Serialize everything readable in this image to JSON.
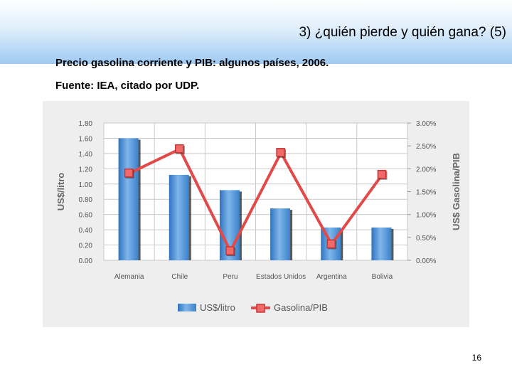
{
  "slide": {
    "title": "3) ¿quién pierde y quién gana? (5)",
    "subtitle_1": "Precio gasolina corriente y PIB: algunos países, 2006.",
    "subtitle_2": "Fuente: IEA, citado por UDP.",
    "page_number": "16"
  },
  "chart_data": {
    "type": "bar",
    "title": "",
    "categories": [
      "Alemania",
      "Chile",
      "Peru",
      "Estados Unidos",
      "Argentina",
      "Bolivia"
    ],
    "series": [
      {
        "name": "US$/litro",
        "type": "bar",
        "axis": "left",
        "color": "#4a8fd4",
        "values": [
          1.6,
          1.12,
          0.92,
          0.68,
          0.43,
          0.43
        ]
      },
      {
        "name": "Gasolina/PIB",
        "type": "line",
        "axis": "right",
        "color": "#e24a4a",
        "values": [
          1.9,
          2.43,
          0.2,
          2.35,
          0.35,
          1.87
        ]
      }
    ],
    "y_left": {
      "label": "US$/litro",
      "range": [
        0,
        1.8
      ],
      "ticks": [
        "0.00",
        "0.20",
        "0.40",
        "0.60",
        "0.80",
        "1.00",
        "1.20",
        "1.40",
        "1.60",
        "1.80"
      ]
    },
    "y_right": {
      "label": "US$ Gasolina/PIB",
      "range": [
        0,
        3.0
      ],
      "ticks": [
        "0.00%",
        "0.50%",
        "1.00%",
        "1.50%",
        "2.00%",
        "2.50%",
        "3.00%"
      ]
    },
    "grid": true,
    "legend_position": "bottom"
  }
}
